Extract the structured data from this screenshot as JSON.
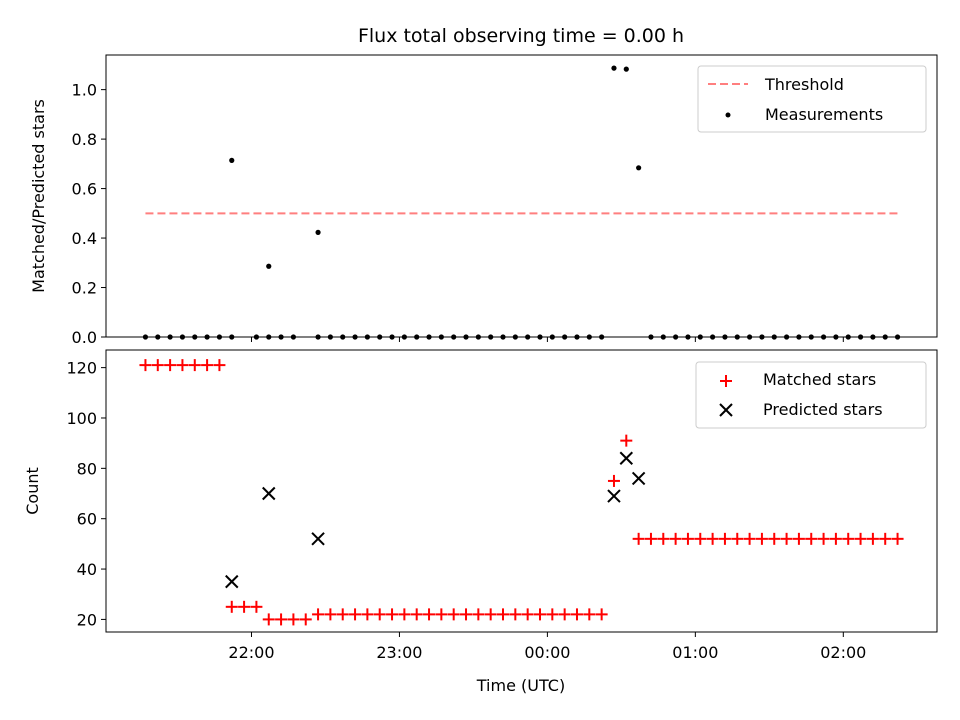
{
  "figure": {
    "title": "Flux total observing time = 0.00 h",
    "xlabel": "Time (UTC)",
    "x_tick_labels": [
      "22:00",
      "23:00",
      "00:00",
      "01:00",
      "02:00"
    ],
    "x_tick_hours": [
      22,
      23,
      24,
      25,
      26
    ],
    "xlim_hours": [
      21.0167,
      26.6333
    ]
  },
  "chart_data": [
    {
      "type": "scatter",
      "ylabel": "Matched/Predicted stars",
      "ylim": [
        0,
        1.14
      ],
      "yticks": [
        0.0,
        0.2,
        0.4,
        0.6,
        0.8,
        1.0
      ],
      "ytick_labels": [
        "0.0",
        "0.2",
        "0.4",
        "0.6",
        "0.8",
        "1.0"
      ],
      "legend": {
        "position": "upper right"
      },
      "threshold": {
        "name": "Threshold",
        "value": 0.5,
        "x_range_hours": [
          21.2833,
          26.3833
        ],
        "color": "#ff7f7f"
      },
      "series": [
        {
          "name": "Measurements",
          "marker": "dot",
          "color": "#000000",
          "x_hours": [
            21.2833,
            21.3667,
            21.45,
            21.5333,
            21.6167,
            21.7,
            21.7833,
            21.8667,
            22.0333,
            22.1167,
            22.2,
            22.2833,
            22.45,
            22.5333,
            22.6167,
            22.7,
            22.7833,
            22.8667,
            22.95,
            23.0333,
            23.1167,
            23.2,
            23.2833,
            23.3667,
            23.45,
            23.5333,
            23.6167,
            23.7,
            23.7833,
            23.8667,
            23.95,
            24.0333,
            24.1167,
            24.2,
            24.2833,
            24.3667,
            24.7,
            24.7833,
            24.8667,
            24.95,
            25.0333,
            25.1167,
            25.2,
            25.2833,
            25.3667,
            25.45,
            25.5333,
            25.6167,
            25.7,
            25.7833,
            25.8667,
            25.95,
            26.0333,
            26.1167,
            26.2,
            26.2833,
            26.3667,
            21.8667,
            22.1167,
            22.45,
            24.45,
            24.5333,
            24.6167
          ],
          "y": [
            0,
            0,
            0,
            0,
            0,
            0,
            0,
            0,
            0,
            0,
            0,
            0,
            0,
            0,
            0,
            0,
            0,
            0,
            0,
            0,
            0,
            0,
            0,
            0,
            0,
            0,
            0,
            0,
            0,
            0,
            0,
            0,
            0,
            0,
            0,
            0,
            0,
            0,
            0,
            0,
            0,
            0,
            0,
            0,
            0,
            0,
            0,
            0,
            0,
            0,
            0,
            0,
            0,
            0,
            0,
            0,
            0,
            0.714,
            0.286,
            0.423,
            1.087,
            1.083,
            0.684
          ]
        }
      ]
    },
    {
      "type": "scatter",
      "ylabel": "Count",
      "ylim": [
        15,
        127
      ],
      "yticks": [
        20,
        40,
        60,
        80,
        100,
        120
      ],
      "ytick_labels": [
        "20",
        "40",
        "60",
        "80",
        "100",
        "120"
      ],
      "legend": {
        "position": "upper right"
      },
      "series": [
        {
          "name": "Matched stars",
          "marker": "plus",
          "color": "#ff0000",
          "x_hours": [
            21.2833,
            21.3667,
            21.45,
            21.5333,
            21.6167,
            21.7,
            21.7833,
            21.8667,
            21.95,
            22.0333,
            22.1167,
            22.2,
            22.2833,
            22.3667,
            22.45,
            22.5333,
            22.6167,
            22.7,
            22.7833,
            22.8667,
            22.95,
            23.0333,
            23.1167,
            23.2,
            23.2833,
            23.3667,
            23.45,
            23.5333,
            23.6167,
            23.7,
            23.7833,
            23.8667,
            23.95,
            24.0333,
            24.1167,
            24.2,
            24.2833,
            24.3667,
            24.45,
            24.5333,
            24.6167,
            24.7,
            24.7833,
            24.8667,
            24.95,
            25.0333,
            25.1167,
            25.2,
            25.2833,
            25.3667,
            25.45,
            25.5333,
            25.6167,
            25.7,
            25.7833,
            25.8667,
            25.95,
            26.0333,
            26.1167,
            26.2,
            26.2833,
            26.3667
          ],
          "y": [
            121,
            121,
            121,
            121,
            121,
            121,
            121,
            25,
            25,
            25,
            20,
            20,
            20,
            20,
            22,
            22,
            22,
            22,
            22,
            22,
            22,
            22,
            22,
            22,
            22,
            22,
            22,
            22,
            22,
            22,
            22,
            22,
            22,
            22,
            22,
            22,
            22,
            22,
            75,
            91,
            52,
            52,
            52,
            52,
            52,
            52,
            52,
            52,
            52,
            52,
            52,
            52,
            52,
            52,
            52,
            52,
            52,
            52,
            52,
            52,
            52,
            52
          ]
        },
        {
          "name": "Predicted stars",
          "marker": "x",
          "color": "#000000",
          "x_hours": [
            21.8667,
            22.1167,
            22.45,
            24.45,
            24.5333,
            24.6167
          ],
          "y": [
            35,
            70,
            52,
            69,
            84,
            76
          ]
        }
      ]
    }
  ]
}
